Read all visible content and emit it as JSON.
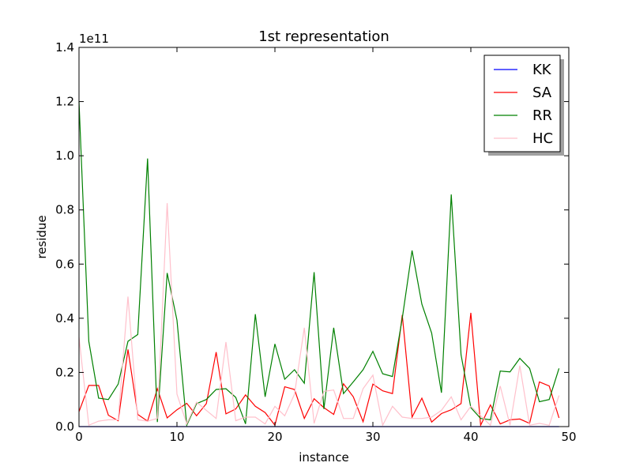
{
  "chart_data": {
    "type": "line",
    "title": "1st representation",
    "xlabel": "instance",
    "ylabel": "residue",
    "y_offset_label": "1e11",
    "xlim": [
      0,
      50
    ],
    "ylim": [
      0,
      1.4
    ],
    "y_unit": "×1e11",
    "xticks": [
      0,
      10,
      20,
      30,
      40,
      50
    ],
    "xtick_labels": [
      "0",
      "10",
      "20",
      "30",
      "40",
      "50"
    ],
    "yticks": [
      0,
      0.2,
      0.4,
      0.6,
      0.8,
      1.0,
      1.2,
      1.4
    ],
    "ytick_labels": [
      "0.0",
      "0.2",
      "0.4",
      "0.6",
      "0.8",
      "1.0",
      "1.2",
      "1.4"
    ],
    "grid": false,
    "legend_position": "top-right",
    "x": [
      0,
      1,
      2,
      3,
      4,
      5,
      6,
      7,
      8,
      9,
      10,
      11,
      12,
      13,
      14,
      15,
      16,
      17,
      18,
      19,
      20,
      21,
      22,
      23,
      24,
      25,
      26,
      27,
      28,
      29,
      30,
      31,
      32,
      33,
      34,
      35,
      36,
      37,
      38,
      39,
      40,
      41,
      42,
      43,
      44,
      45,
      46,
      47,
      48,
      49
    ],
    "series": [
      {
        "name": "KK",
        "color": "#0000ff",
        "values": [
          0,
          0,
          0,
          0,
          0,
          0,
          0,
          0,
          0,
          0,
          0,
          0,
          0,
          0,
          0,
          0,
          0,
          0,
          0,
          0,
          0,
          0,
          0,
          0,
          0,
          0,
          0,
          0,
          0,
          0,
          0,
          0,
          0,
          0,
          0,
          0,
          0,
          0,
          0,
          0,
          0,
          0,
          0,
          0,
          0,
          0,
          0,
          0,
          0,
          0
        ]
      },
      {
        "name": "SA",
        "color": "#ff0000",
        "values": [
          0.055,
          0.152,
          0.152,
          0.042,
          0.022,
          0.285,
          0.045,
          0.02,
          0.14,
          0.032,
          0.062,
          0.086,
          0.04,
          0.085,
          0.275,
          0.047,
          0.065,
          0.117,
          0.075,
          0.052,
          0.005,
          0.147,
          0.137,
          0.03,
          0.103,
          0.07,
          0.045,
          0.158,
          0.11,
          0.018,
          0.157,
          0.132,
          0.122,
          0.412,
          0.035,
          0.105,
          0.017,
          0.048,
          0.062,
          0.085,
          0.42,
          0.005,
          0.08,
          0.01,
          0.025,
          0.028,
          0.012,
          0.165,
          0.15,
          0.032
        ]
      },
      {
        "name": "RR",
        "color": "#008000",
        "values": [
          1.2,
          0.315,
          0.105,
          0.1,
          0.157,
          0.315,
          0.34,
          0.99,
          0.017,
          0.567,
          0.393,
          0.005,
          0.085,
          0.1,
          0.137,
          0.14,
          0.108,
          0.01,
          0.415,
          0.11,
          0.305,
          0.175,
          0.21,
          0.16,
          0.57,
          0.065,
          0.365,
          0.122,
          0.165,
          0.21,
          0.278,
          0.195,
          0.185,
          0.4,
          0.65,
          0.452,
          0.345,
          0.125,
          0.857,
          0.265,
          0.07,
          0.03,
          0.025,
          0.205,
          0.202,
          0.252,
          0.215,
          0.092,
          0.1,
          0.215
        ]
      },
      {
        "name": "HC",
        "color": "#ffc0cb",
        "values": [
          0.33,
          0.005,
          0.02,
          0.025,
          0.025,
          0.48,
          0.025,
          0.02,
          0.03,
          0.825,
          0.12,
          0.01,
          0.09,
          0.06,
          0.03,
          0.312,
          0.022,
          0.035,
          0.035,
          0.01,
          0.075,
          0.04,
          0.12,
          0.365,
          0.012,
          0.13,
          0.135,
          0.03,
          0.03,
          0.14,
          0.19,
          0.005,
          0.075,
          0.035,
          0.03,
          0.03,
          0.035,
          0.06,
          0.11,
          0.025,
          0.075,
          0.04,
          0.005,
          0.15,
          0.005,
          0.225,
          0.005,
          0.012,
          0.005,
          0.115
        ]
      }
    ]
  }
}
